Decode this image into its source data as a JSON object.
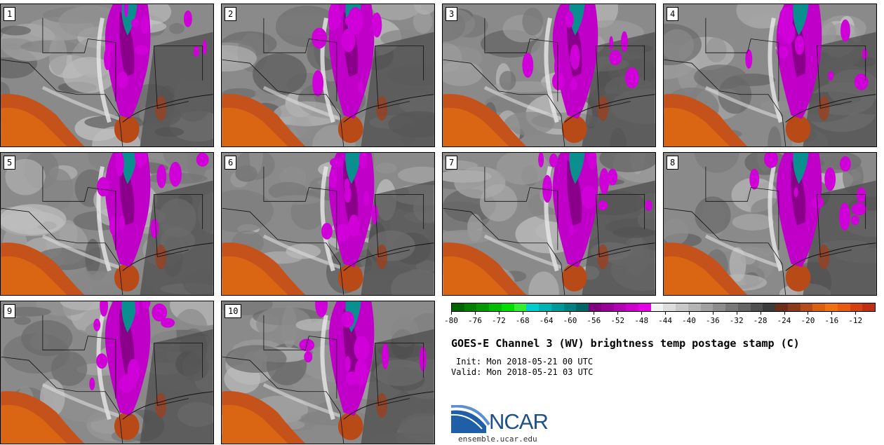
{
  "panels": [
    {
      "label": "1"
    },
    {
      "label": "2"
    },
    {
      "label": "3"
    },
    {
      "label": "4"
    },
    {
      "label": "5"
    },
    {
      "label": "6"
    },
    {
      "label": "7"
    },
    {
      "label": "8"
    },
    {
      "label": "9"
    },
    {
      "label": "10"
    }
  ],
  "colorbar": {
    "colors": [
      "#006400",
      "#008000",
      "#009900",
      "#00bb00",
      "#00dd00",
      "#33ee33",
      "#00cccc",
      "#00b3b3",
      "#009999",
      "#008080",
      "#006666",
      "#800080",
      "#990099",
      "#b300b3",
      "#cc00cc",
      "#e600e6",
      "#f2f2f2",
      "#dddddd",
      "#c8c8c8",
      "#b4b4b4",
      "#a0a0a0",
      "#8c8c8c",
      "#787878",
      "#646464",
      "#505050",
      "#3c3c3c",
      "#6b2f1a",
      "#8b3a1a",
      "#b54a1a",
      "#d95f0e",
      "#f07010",
      "#e85a10",
      "#d64010",
      "#c03010"
    ],
    "tick_labels": [
      "-80",
      "-76",
      "-72",
      "-68",
      "-64",
      "-60",
      "-56",
      "-52",
      "-48",
      "-44",
      "-40",
      "-36",
      "-32",
      "-28",
      "-24",
      "-20",
      "-16",
      "-12"
    ]
  },
  "title": "GOES-E Channel 3 (WV) brightness temp postage stamp (C)",
  "init": "Init: Mon 2018-05-21 00 UTC",
  "valid": "Valid: Mon 2018-05-21 03 UTC",
  "logo_text": "NCAR",
  "site": "ensemble.ucar.edu"
}
